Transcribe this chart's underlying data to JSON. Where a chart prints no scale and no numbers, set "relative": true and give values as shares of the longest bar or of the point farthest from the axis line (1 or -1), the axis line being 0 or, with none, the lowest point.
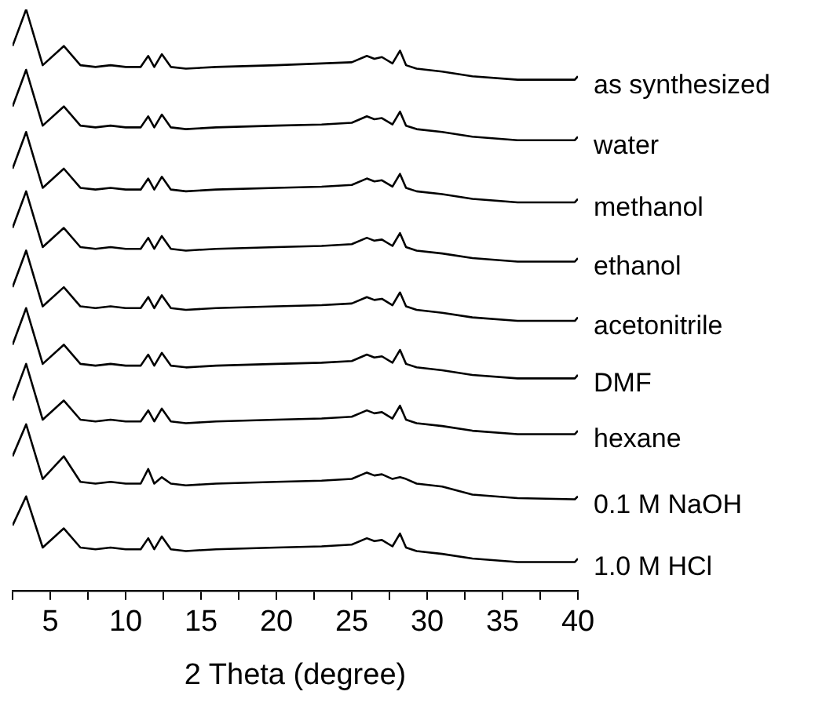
{
  "chart_data": {
    "type": "line",
    "relative": true,
    "xlabel": "2 Theta (degree)",
    "xlim": [
      2.5,
      40
    ],
    "xticks": [
      {
        "value": 2.5,
        "label": null
      },
      5,
      {
        "value": 7.5,
        "label": null
      },
      10,
      {
        "value": 12.5,
        "label": null
      },
      15,
      {
        "value": 17.5,
        "label": null
      },
      20,
      {
        "value": 22.5,
        "label": null
      },
      25,
      {
        "value": 27.5,
        "label": null
      },
      30,
      {
        "value": 32.5,
        "label": null
      },
      35,
      {
        "value": 37.5,
        "label": null
      },
      40
    ],
    "x": [
      2.5,
      3.4,
      4.5,
      5.9,
      7,
      8,
      9,
      10,
      11,
      11.5,
      11.9,
      12.4,
      13,
      14,
      16,
      20,
      23,
      25,
      26,
      26.5,
      27,
      27.7,
      28.2,
      28.6,
      29.3,
      31,
      33,
      36,
      39.8,
      40
    ],
    "legend": false,
    "grid": false,
    "marker": "none",
    "line_style": "solid",
    "tick_labels": "x",
    "series": [
      {
        "name": "as synthesized",
        "color": "#000000",
        "values": [
          0.937,
          1,
          0.904,
          0.937,
          0.904,
          0.901,
          0.904,
          0.901,
          0.901,
          0.92,
          0.901,
          0.923,
          0.901,
          0.898,
          0.901,
          0.904,
          0.907,
          0.909,
          0.92,
          0.915,
          0.918,
          0.907,
          0.929,
          0.904,
          0.898,
          0.893,
          0.885,
          0.879,
          0.879,
          0.885
        ]
      },
      {
        "name": "water",
        "color": "#000000",
        "values": [
          0.833,
          0.896,
          0.8,
          0.833,
          0.8,
          0.797,
          0.8,
          0.797,
          0.797,
          0.816,
          0.797,
          0.819,
          0.797,
          0.794,
          0.797,
          0.8,
          0.802,
          0.805,
          0.816,
          0.811,
          0.813,
          0.802,
          0.824,
          0.8,
          0.794,
          0.789,
          0.781,
          0.775,
          0.775,
          0.781
        ]
      },
      {
        "name": "methanol",
        "color": "#000000",
        "values": [
          0.726,
          0.789,
          0.693,
          0.726,
          0.693,
          0.69,
          0.693,
          0.69,
          0.69,
          0.709,
          0.69,
          0.712,
          0.69,
          0.687,
          0.69,
          0.693,
          0.695,
          0.698,
          0.709,
          0.704,
          0.706,
          0.695,
          0.717,
          0.693,
          0.687,
          0.682,
          0.674,
          0.668,
          0.668,
          0.674
        ]
      },
      {
        "name": "ethanol",
        "color": "#000000",
        "values": [
          0.624,
          0.687,
          0.591,
          0.624,
          0.591,
          0.588,
          0.591,
          0.588,
          0.588,
          0.607,
          0.588,
          0.61,
          0.588,
          0.585,
          0.588,
          0.591,
          0.593,
          0.596,
          0.607,
          0.602,
          0.604,
          0.593,
          0.615,
          0.591,
          0.585,
          0.58,
          0.572,
          0.566,
          0.566,
          0.572
        ]
      },
      {
        "name": "acetonitrile",
        "color": "#000000",
        "values": [
          0.522,
          0.585,
          0.489,
          0.522,
          0.489,
          0.486,
          0.489,
          0.486,
          0.486,
          0.505,
          0.486,
          0.508,
          0.486,
          0.483,
          0.486,
          0.489,
          0.491,
          0.494,
          0.505,
          0.5,
          0.502,
          0.491,
          0.513,
          0.489,
          0.483,
          0.478,
          0.47,
          0.464,
          0.464,
          0.47
        ]
      },
      {
        "name": "DMF",
        "color": "#000000",
        "values": [
          0.423,
          0.486,
          0.39,
          0.423,
          0.39,
          0.387,
          0.39,
          0.387,
          0.387,
          0.406,
          0.387,
          0.409,
          0.387,
          0.384,
          0.387,
          0.39,
          0.392,
          0.395,
          0.406,
          0.401,
          0.403,
          0.392,
          0.414,
          0.39,
          0.384,
          0.379,
          0.371,
          0.365,
          0.365,
          0.371
        ]
      },
      {
        "name": "hexane",
        "color": "#000000",
        "values": [
          0.327,
          0.39,
          0.294,
          0.327,
          0.294,
          0.291,
          0.294,
          0.291,
          0.291,
          0.31,
          0.291,
          0.313,
          0.291,
          0.288,
          0.291,
          0.294,
          0.296,
          0.299,
          0.31,
          0.305,
          0.307,
          0.296,
          0.318,
          0.294,
          0.288,
          0.283,
          0.275,
          0.269,
          0.269,
          0.275
        ]
      },
      {
        "name": "0.1 M NaOH",
        "color": "#000000",
        "values": [
          0.231,
          0.286,
          0.192,
          0.231,
          0.187,
          0.184,
          0.187,
          0.184,
          0.184,
          0.209,
          0.184,
          0.195,
          0.184,
          0.181,
          0.184,
          0.187,
          0.189,
          0.192,
          0.203,
          0.198,
          0.2,
          0.192,
          0.195,
          0.192,
          0.184,
          0.179,
          0.165,
          0.159,
          0.157,
          0.162
        ]
      },
      {
        "name": "1.0 M HCl",
        "color": "#000000",
        "values": [
          0.112,
          0.162,
          0.074,
          0.107,
          0.074,
          0.071,
          0.074,
          0.071,
          0.071,
          0.09,
          0.071,
          0.093,
          0.071,
          0.068,
          0.071,
          0.074,
          0.076,
          0.079,
          0.09,
          0.085,
          0.087,
          0.076,
          0.098,
          0.074,
          0.068,
          0.063,
          0.055,
          0.049,
          0.049,
          0.055
        ]
      }
    ]
  }
}
